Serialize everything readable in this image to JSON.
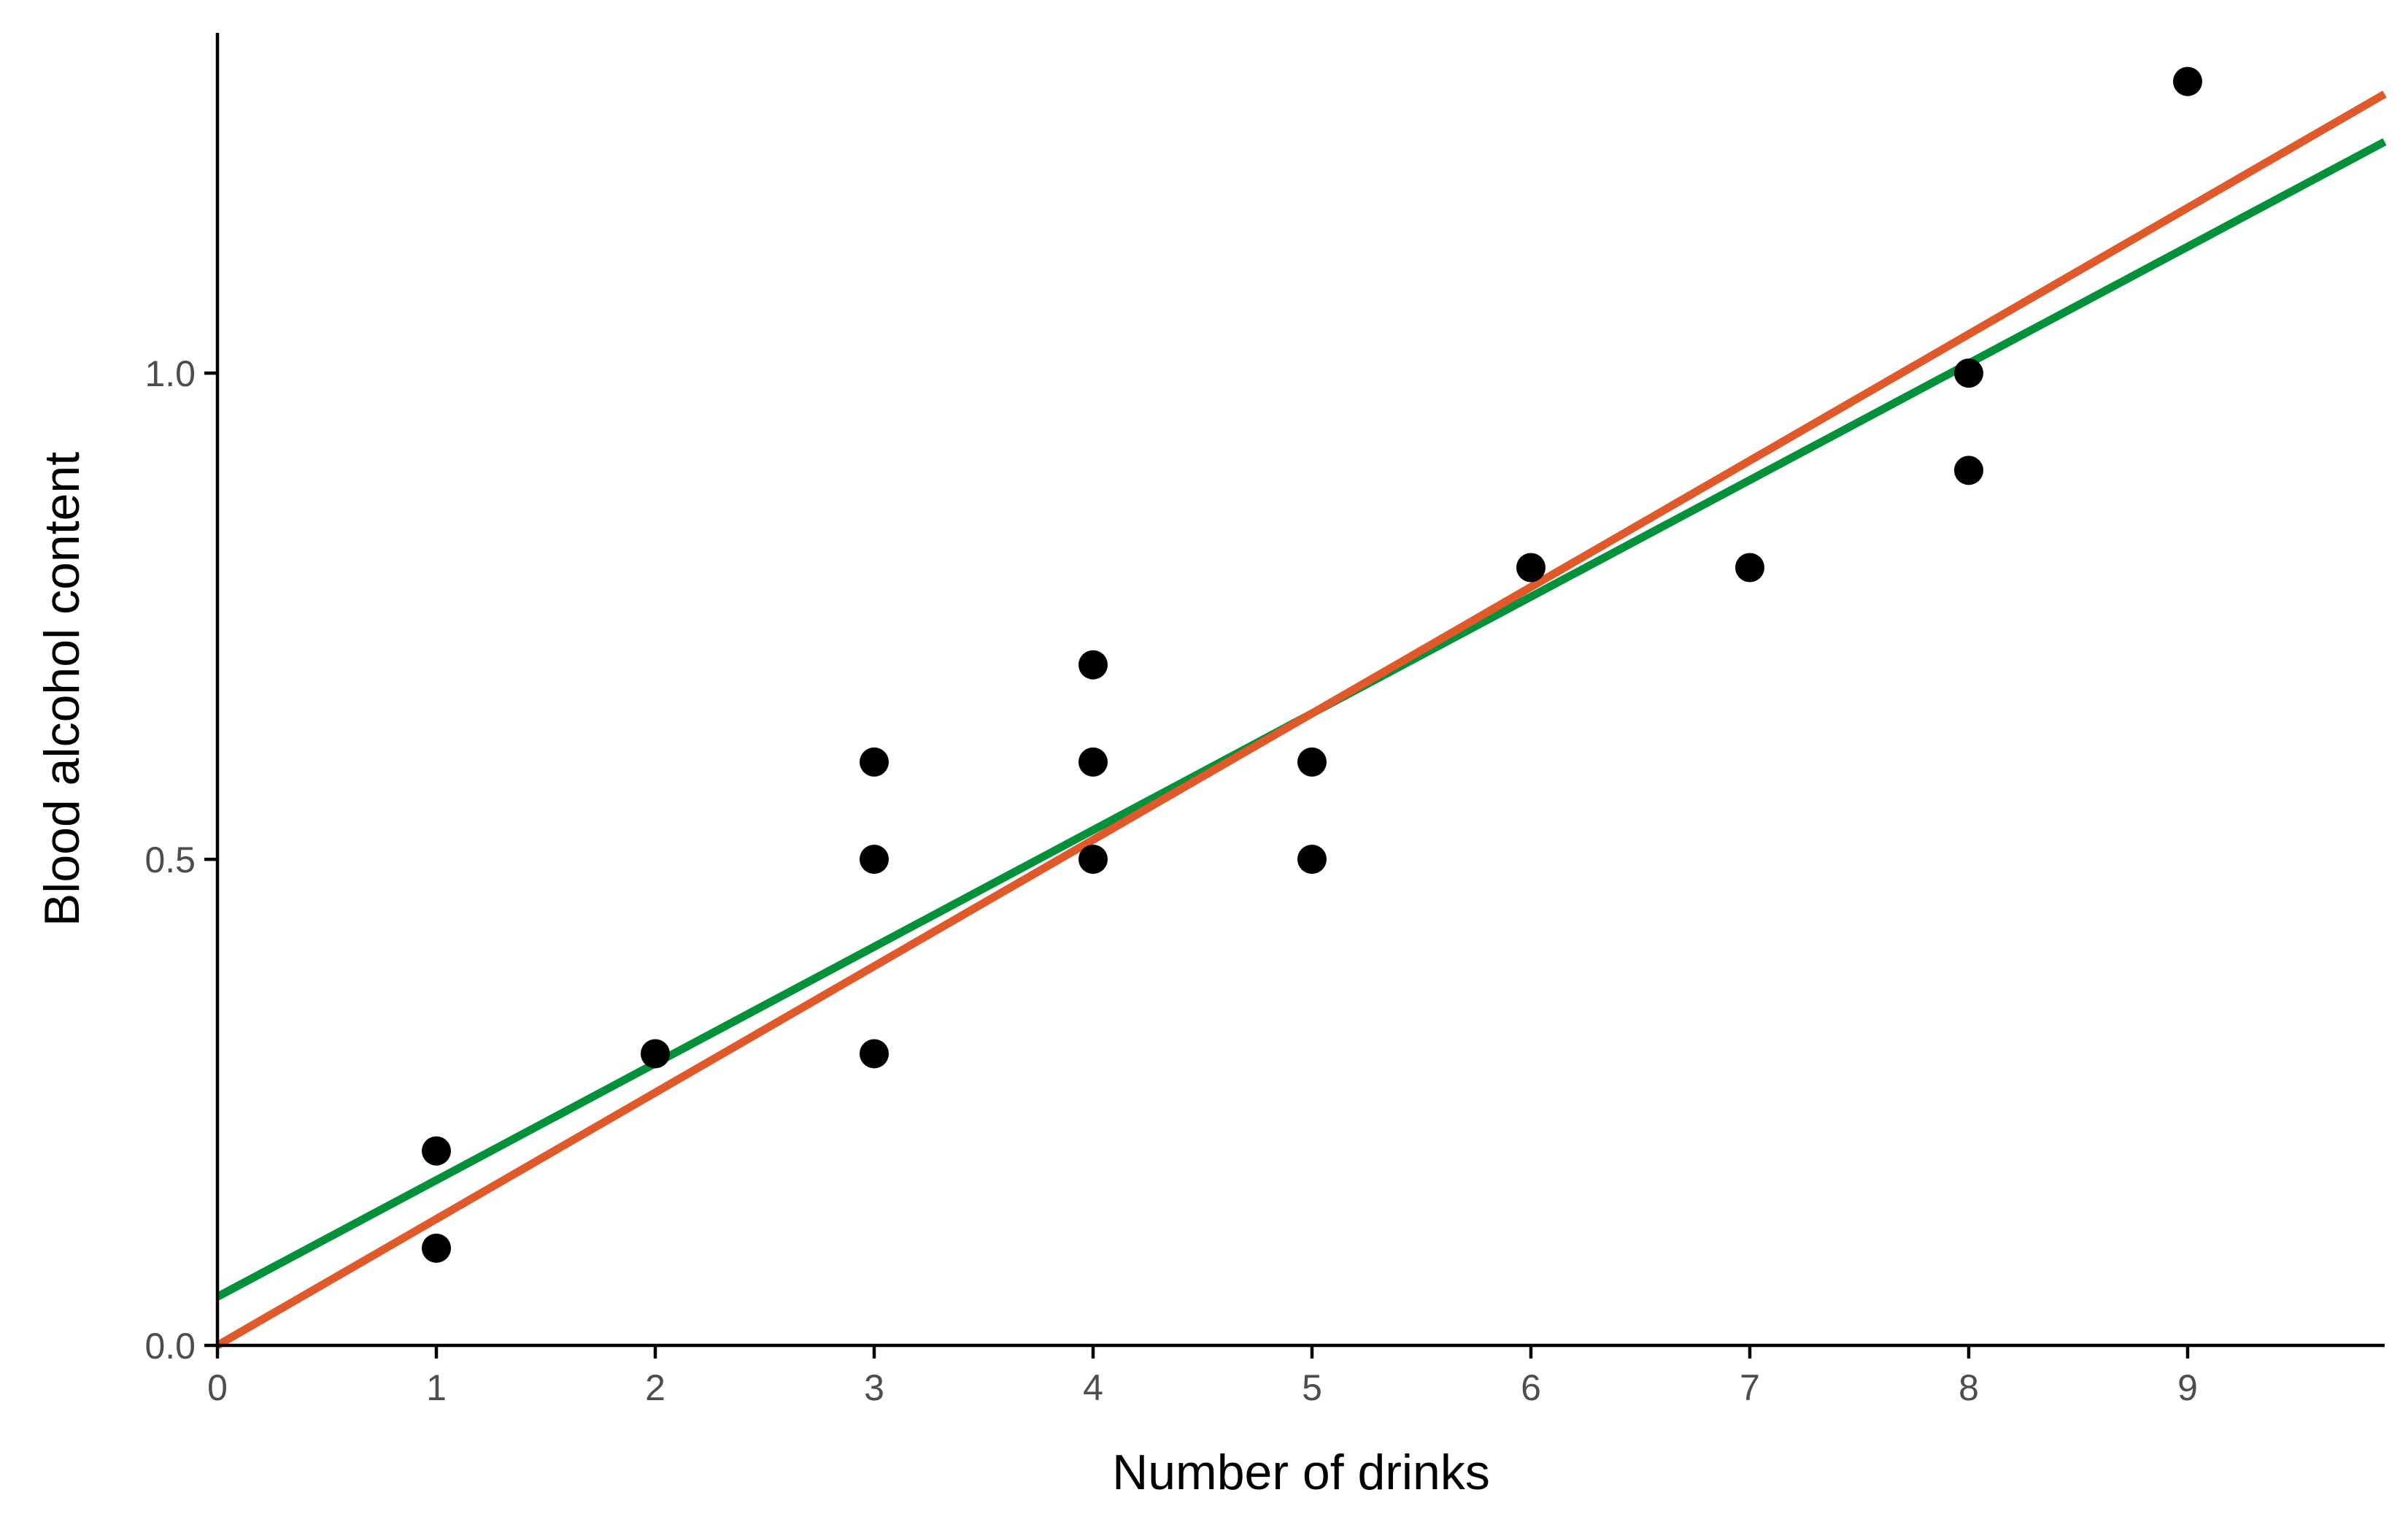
{
  "chart_data": {
    "type": "scatter",
    "xlabel": "Number of drinks",
    "ylabel": "Blood alcohol content",
    "xlim": [
      0,
      9.9
    ],
    "ylim": [
      0,
      1.35
    ],
    "x_ticks": [
      0,
      1,
      2,
      3,
      4,
      5,
      6,
      7,
      8,
      9
    ],
    "x_tick_labels": [
      "0",
      "1",
      "2",
      "3",
      "4",
      "5",
      "6",
      "7",
      "8",
      "9"
    ],
    "y_ticks": [
      0,
      0.5,
      1.0
    ],
    "y_tick_labels": [
      "0.0",
      "0.5",
      "1.0"
    ],
    "grid": false,
    "points": [
      {
        "x": 1,
        "y": 0.2
      },
      {
        "x": 1,
        "y": 0.1
      },
      {
        "x": 2,
        "y": 0.3
      },
      {
        "x": 3,
        "y": 0.6
      },
      {
        "x": 3,
        "y": 0.5
      },
      {
        "x": 3,
        "y": 0.3
      },
      {
        "x": 4,
        "y": 0.7
      },
      {
        "x": 4,
        "y": 0.6
      },
      {
        "x": 4,
        "y": 0.5
      },
      {
        "x": 5,
        "y": 0.6
      },
      {
        "x": 5,
        "y": 0.5
      },
      {
        "x": 6,
        "y": 0.8
      },
      {
        "x": 7,
        "y": 0.8
      },
      {
        "x": 8,
        "y": 1.0
      },
      {
        "x": 8,
        "y": 0.9
      },
      {
        "x": 9,
        "y": 1.3
      }
    ],
    "point_color": "#000000",
    "lines": [
      {
        "color": "#00913a",
        "intercept": 0.05,
        "slope": 0.12
      },
      {
        "color": "#e0592a",
        "intercept": 0.0,
        "slope": 0.13
      }
    ]
  }
}
